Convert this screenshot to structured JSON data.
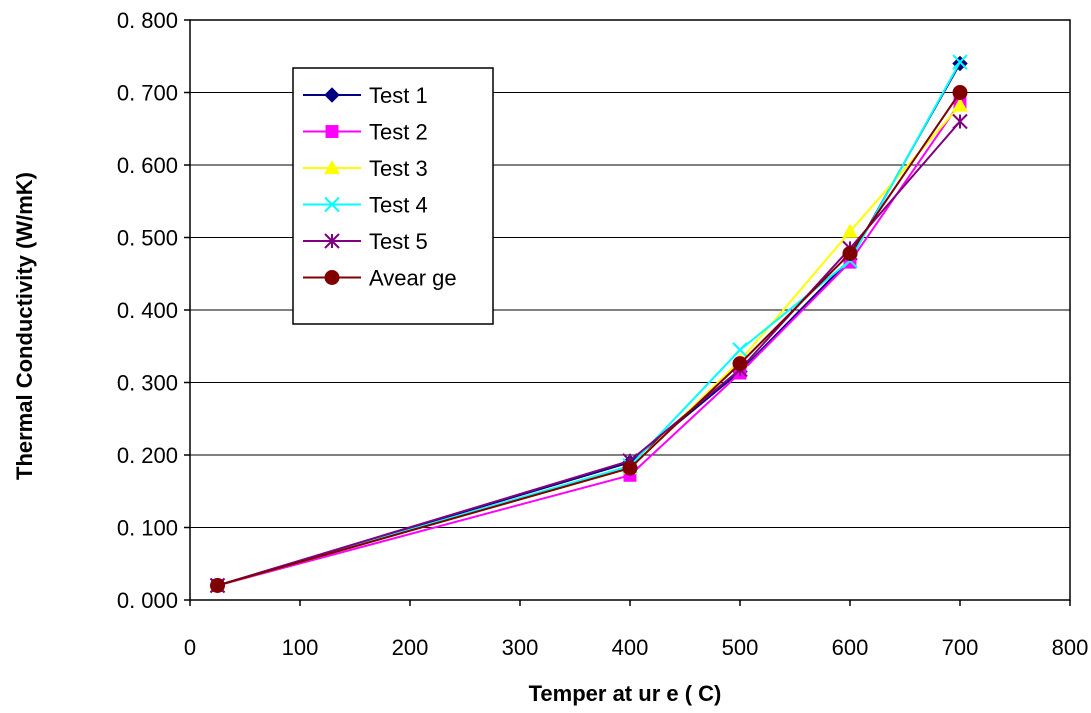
{
  "chart_data": {
    "type": "line",
    "xlabel": "Temper at ur e  ( C)",
    "ylabel": "Thermal Conductivity (W/mK)",
    "xlim": [
      0,
      800
    ],
    "ylim": [
      0,
      0.8
    ],
    "x_ticks": [
      "0",
      "100",
      "200",
      "300",
      "400",
      "500",
      "600",
      "700",
      "800"
    ],
    "y_ticks": [
      "0. 000",
      "0. 100",
      "0. 200",
      "0. 300",
      "0. 400",
      "0. 500",
      "0. 600",
      "0. 700",
      "0. 800"
    ],
    "grid": "horizontal",
    "legend_position": "top-left",
    "series": [
      {
        "name": "Test  1",
        "color": "#000080",
        "marker": "diamond",
        "x": [
          25,
          400,
          500,
          600,
          700
        ],
        "y": [
          0.02,
          0.19,
          0.315,
          0.47,
          0.74
        ]
      },
      {
        "name": "Test  2",
        "color": "#FF00FF",
        "marker": "square",
        "x": [
          25,
          400,
          500,
          600,
          700
        ],
        "y": [
          0.02,
          0.172,
          0.313,
          0.466,
          0.686
        ]
      },
      {
        "name": "Test  3",
        "color": "#FFFF00",
        "marker": "triangle",
        "x": [
          25,
          400,
          500,
          600,
          700
        ],
        "y": [
          0.02,
          0.182,
          0.33,
          0.508,
          0.682
        ]
      },
      {
        "name": "Test  4",
        "color": "#00FFFF",
        "marker": "x",
        "x": [
          25,
          400,
          500,
          600,
          700
        ],
        "y": [
          0.02,
          0.185,
          0.345,
          0.468,
          0.742
        ]
      },
      {
        "name": "Test  5",
        "color": "#800080",
        "marker": "star",
        "x": [
          25,
          400,
          500,
          600,
          700
        ],
        "y": [
          0.02,
          0.192,
          0.318,
          0.485,
          0.66
        ]
      },
      {
        "name": "Avear ge",
        "color": "#800000",
        "marker": "circle",
        "x": [
          25,
          400,
          500,
          600,
          700
        ],
        "y": [
          0.02,
          0.182,
          0.326,
          0.478,
          0.7
        ]
      }
    ]
  }
}
